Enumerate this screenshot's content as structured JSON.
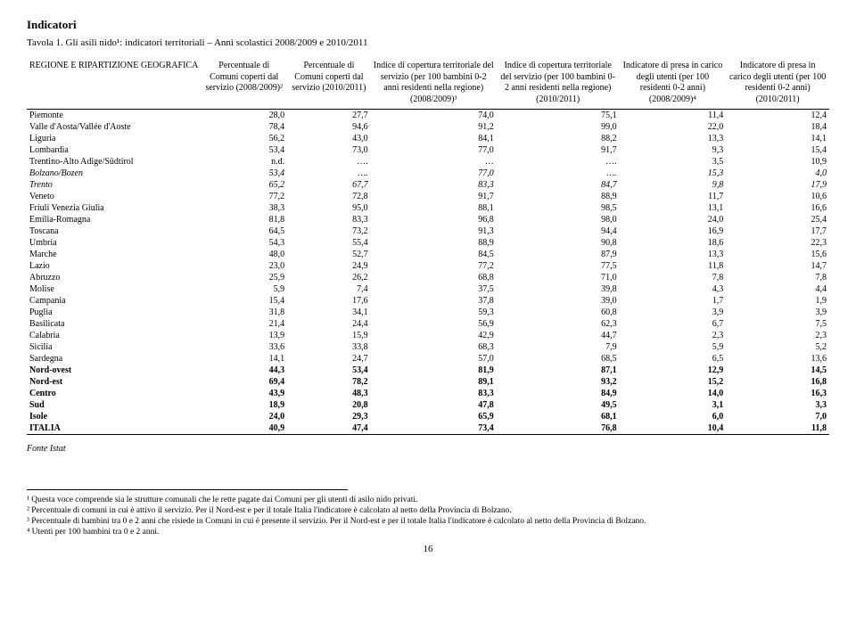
{
  "sectionTitle": "Indicatori",
  "tableTitle": "Tavola 1. Gli asili nido¹: indicatori territoriali – Anni scolastici 2008/2009 e 2010/2011",
  "columns": [
    "REGIONE E RIPARTIZIONE GEOGRAFICA",
    "Percentuale di Comuni coperti dal servizio (2008/2009)²",
    "Percentuale di Comuni coperti dal servizio (2010/2011)",
    "Indice di copertura territoriale del servizio (per 100 bambini 0-2 anni residenti nella regione) (2008/2009)³",
    "Indice di copertura territoriale del servizio (per 100 bambini 0-2 anni residenti nella regione) (2010/2011)",
    "Indicatore di presa in carico degli utenti (per 100 residenti 0-2 anni) (2008/2009)⁴",
    "Indicatore di presa in carico degli utenti (per 100 residenti 0-2 anni) (2010/2011)"
  ],
  "rows": [
    {
      "region": "Piemonte",
      "v": [
        "28,0",
        "27,7",
        "74,0",
        "75,1",
        "11,4",
        "12,4"
      ],
      "style": "top"
    },
    {
      "region": "Valle d'Aosta/Vallée d'Aoste",
      "v": [
        "78,4",
        "94,6",
        "91,2",
        "99,0",
        "22,0",
        "18,4"
      ]
    },
    {
      "region": "Liguria",
      "v": [
        "56,2",
        "43,0",
        "84,1",
        "88,2",
        "13,3",
        "14,1"
      ]
    },
    {
      "region": "Lombardia",
      "v": [
        "53,4",
        "73,0",
        "77,0",
        "91,7",
        "9,3",
        "15,4"
      ]
    },
    {
      "region": "Trentino-Alto Adige/Südtirol",
      "v": [
        "n.d.",
        "….",
        "…",
        "….",
        "3,5",
        "10,9"
      ]
    },
    {
      "region": "Bolzano/Bozen",
      "v": [
        "53,4",
        "….",
        "77,0",
        "….",
        "15,3",
        "4,0"
      ],
      "style": "italic"
    },
    {
      "region": "Trento",
      "v": [
        "65,2",
        "67,7",
        "83,3",
        "84,7",
        "9,8",
        "17,9"
      ],
      "style": "italic"
    },
    {
      "region": "Veneto",
      "v": [
        "77,2",
        "72,8",
        "91,7",
        "88,9",
        "11,7",
        "10,6"
      ]
    },
    {
      "region": "Friuli Venezia Giulia",
      "v": [
        "38,3",
        "95,0",
        "88,1",
        "98,5",
        "13,1",
        "16,6"
      ]
    },
    {
      "region": "Emilia-Romagna",
      "v": [
        "81,8",
        "83,3",
        "96,8",
        "98,0",
        "24,0",
        "25,4"
      ]
    },
    {
      "region": "Toscana",
      "v": [
        "64,5",
        "73,2",
        "91,3",
        "94,4",
        "16,9",
        "17,7"
      ]
    },
    {
      "region": "Umbria",
      "v": [
        "54,3",
        "55,4",
        "88,9",
        "90,8",
        "18,6",
        "22,3"
      ]
    },
    {
      "region": "Marche",
      "v": [
        "48,0",
        "52,7",
        "84,5",
        "87,9",
        "13,3",
        "15,6"
      ]
    },
    {
      "region": "Lazio",
      "v": [
        "23,0",
        "24,9",
        "77,2",
        "77,5",
        "11,8",
        "14,7"
      ]
    },
    {
      "region": "Abruzzo",
      "v": [
        "25,9",
        "26,2",
        "68,8",
        "71,0",
        "7,8",
        "7,8"
      ]
    },
    {
      "region": "Molise",
      "v": [
        "5,9",
        "7,4",
        "37,5",
        "39,8",
        "4,3",
        "4,4"
      ]
    },
    {
      "region": "Campania",
      "v": [
        "15,4",
        "17,6",
        "37,8",
        "39,0",
        "1,7",
        "1,9"
      ]
    },
    {
      "region": "Puglia",
      "v": [
        "31,8",
        "34,1",
        "59,3",
        "60,8",
        "3,9",
        "3,9"
      ]
    },
    {
      "region": "Basilicata",
      "v": [
        "21,4",
        "24,4",
        "56,9",
        "62,3",
        "6,7",
        "7,5"
      ]
    },
    {
      "region": "Calabria",
      "v": [
        "13,9",
        "15,9",
        "42,9",
        "44,7",
        "2,3",
        "2,3"
      ]
    },
    {
      "region": "Sicilia",
      "v": [
        "33,6",
        "33,8",
        "68,3",
        "7,9",
        "5,9",
        "5,2"
      ]
    },
    {
      "region": "Sardegna",
      "v": [
        "14,1",
        "24,7",
        "57,0",
        "68,5",
        "6,5",
        "13,6"
      ]
    },
    {
      "region": "Nord-ovest",
      "v": [
        "44,3",
        "53,4",
        "81,9",
        "87,1",
        "12,9",
        "14,5"
      ],
      "style": "bold"
    },
    {
      "region": "Nord-est",
      "v": [
        "69,4",
        "78,2",
        "89,1",
        "93,2",
        "15,2",
        "16,8"
      ],
      "style": "bold"
    },
    {
      "region": "Centro",
      "v": [
        "43,9",
        "48,3",
        "83,3",
        "84,9",
        "14,0",
        "16,3"
      ],
      "style": "bold"
    },
    {
      "region": "Sud",
      "v": [
        "18,9",
        "20,8",
        "47,8",
        "49,5",
        "3,1",
        "3,3"
      ],
      "style": "bold"
    },
    {
      "region": "Isole",
      "v": [
        "24,0",
        "29,3",
        "65,9",
        "68,1",
        "6,0",
        "7,0"
      ],
      "style": "bold"
    },
    {
      "region": "ITALIA",
      "v": [
        "40,9",
        "47,4",
        "73,4",
        "76,8",
        "10,4",
        "11,8"
      ],
      "style": "bold last"
    }
  ],
  "fonte": "Fonte Istat",
  "footnotes": [
    "¹ Questa voce comprende sia le strutture comunali che le rette pagate dai Comuni per gli utenti di asilo nido privati.",
    "² Percentuale di comuni in cui è attivo il servizio. Per il Nord-est e per il totale Italia l'indicatore è calcolato al netto della Provincia di Bolzano.",
    "³ Percentuale di bambini tra 0 e 2 anni che risiede in Comuni in cui è presente il servizio. Per il Nord-est e per il totale Italia l'indicatore è calcolato al netto della Provincia di Bolzano.",
    "⁴ Utenti per 100 bambini tra 0 e 2 anni."
  ],
  "pageNumber": "16"
}
